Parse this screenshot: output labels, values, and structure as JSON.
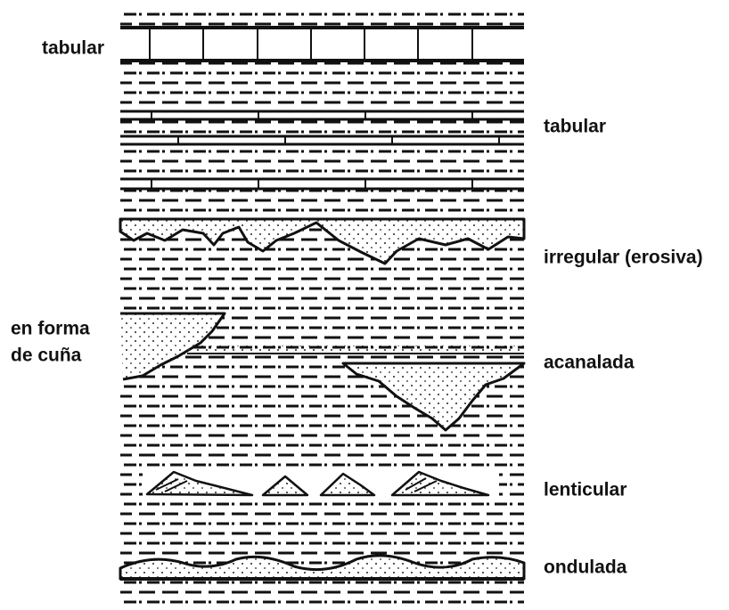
{
  "labels": [
    {
      "text": "tabular"
    },
    {
      "text": "tabular"
    },
    {
      "text": "irregular (erosiva)"
    },
    {
      "lines": [
        "en forma",
        "de cuña"
      ]
    },
    {
      "text": "acanalada"
    },
    {
      "text": "lenticular"
    },
    {
      "text": "ondulada"
    }
  ]
}
